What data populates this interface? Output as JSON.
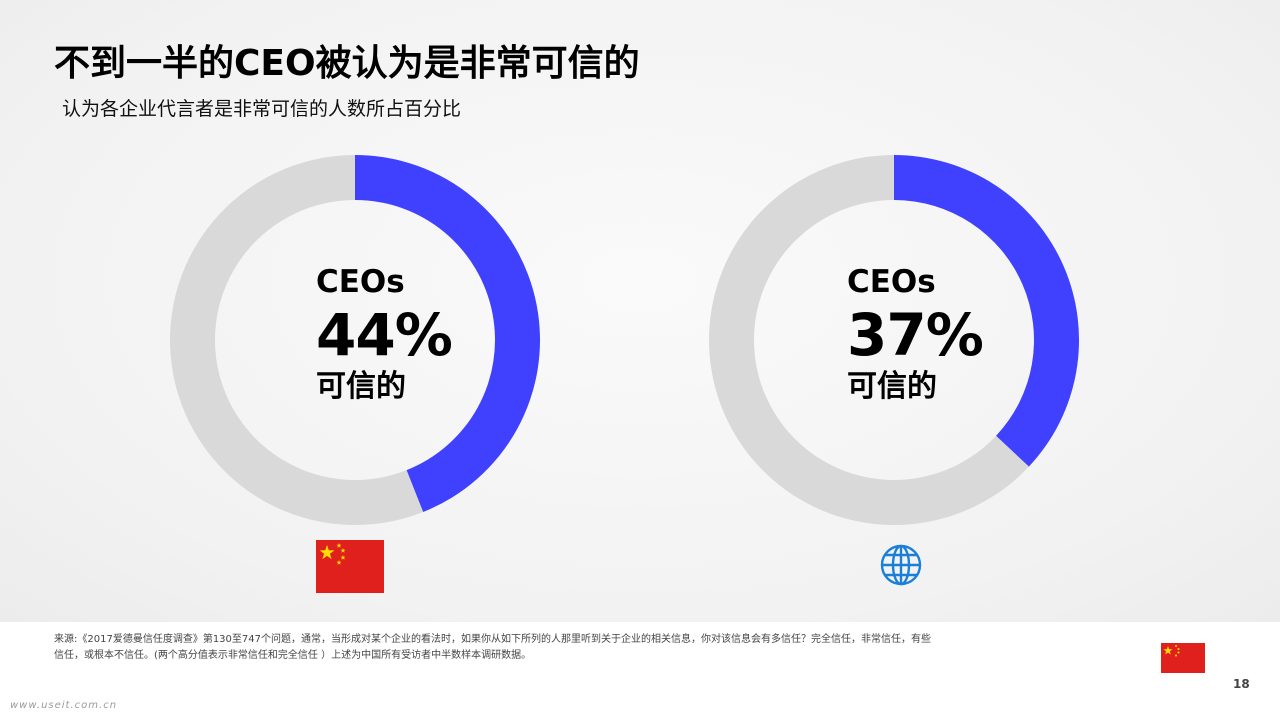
{
  "title": "不到一半的CEO被认为是非常可信的",
  "subtitle": "认为各企业代言者是非常可信的人数所占百分比",
  "colors": {
    "accent": "#4040ff",
    "track": "#d9d9d9",
    "flag": "#e0201d",
    "globe": "#1a7fd6"
  },
  "chart_data": [
    {
      "type": "pie",
      "variant": "donut",
      "region_icon": "china-flag-icon",
      "label_top": "CEOs",
      "label_value": "44%",
      "label_bottom": "可信的",
      "values": [
        44,
        56
      ],
      "highlight_index": 0
    },
    {
      "type": "pie",
      "variant": "donut",
      "region_icon": "globe-icon",
      "label_top": "CEOs",
      "label_value": "37%",
      "label_bottom": "可信的",
      "values": [
        37,
        63
      ],
      "highlight_index": 0
    }
  ],
  "footer": {
    "source": "来源:《2017爱德曼信任度调查》第130至747个问题，通常，当形成对某个企业的看法时，如果你从如下所列的人那里听到关于企业的相关信息，你对该信息会有多信任？完全信任，非常信任，有些信任，或根本不信任。(两个高分值表示非常信任和完全信任 ）上述为中国所有受访者中半数样本调研数据。",
    "page_number": "18",
    "watermark": "www.useit.com.cn",
    "region_icon": "china-flag-icon"
  }
}
